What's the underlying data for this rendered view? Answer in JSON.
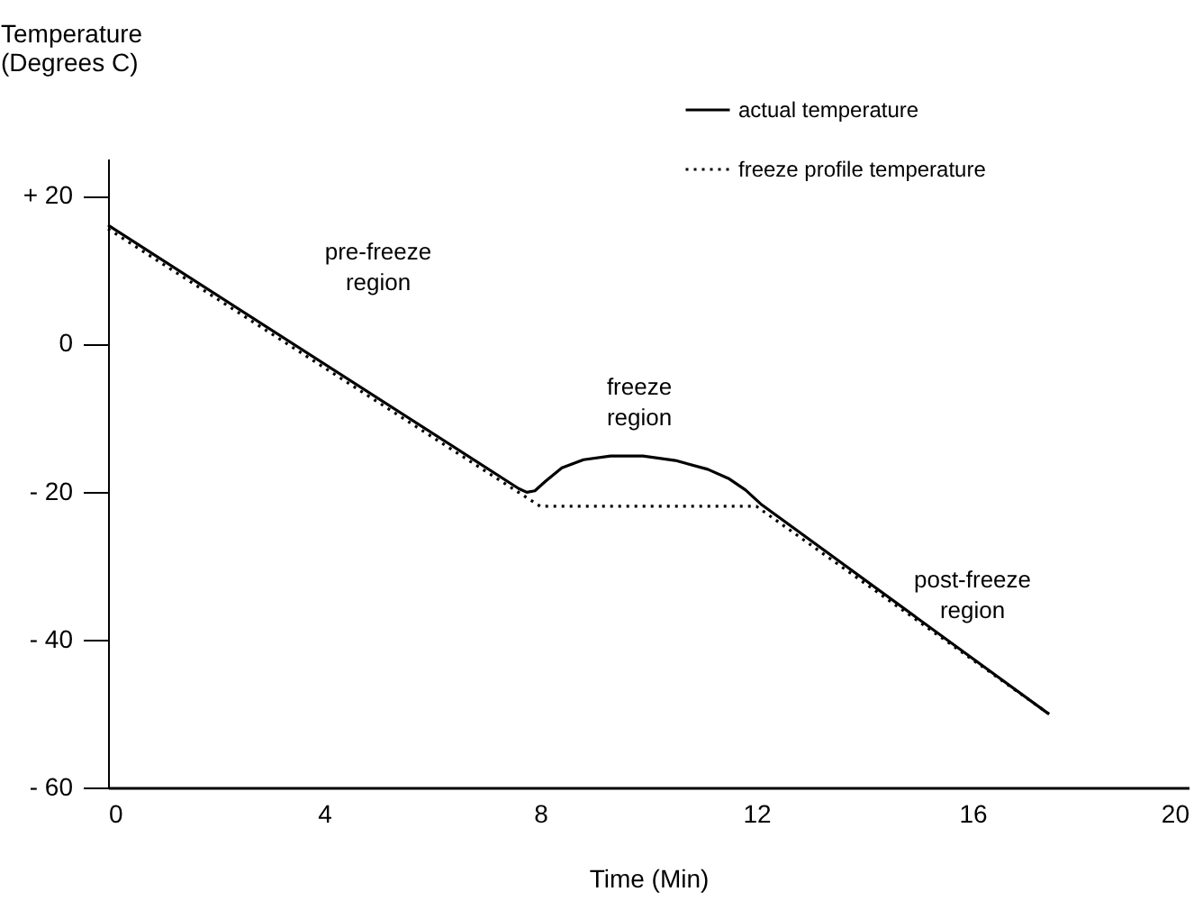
{
  "chart_data": {
    "type": "line",
    "xlabel": "Time (Min)",
    "ylabel": "Temperature (Degrees C)",
    "xlim": [
      0,
      20
    ],
    "xticks": [
      0,
      4,
      8,
      12,
      16,
      20
    ],
    "ylim": [
      -60,
      25
    ],
    "yticks": [
      {
        "value": 20,
        "label": "+ 20"
      },
      0,
      {
        "value": -20,
        "label": "- 20"
      },
      {
        "value": -40,
        "label": "- 40"
      },
      {
        "value": -60,
        "label": "- 60"
      }
    ],
    "grid": false,
    "legend": "top right",
    "marker": "none",
    "series": [
      {
        "name": "actual temperature",
        "color": "#000000",
        "line_style": "solid",
        "x": [
          0,
          7.6,
          7.75,
          7.9,
          8.1,
          8.4,
          8.8,
          9.3,
          9.9,
          10.5,
          11.1,
          11.5,
          11.8,
          12.1,
          17.4
        ],
        "values": [
          16,
          -19.6,
          -20.1,
          -19.9,
          -18.6,
          -16.8,
          -15.7,
          -15.2,
          -15.2,
          -15.8,
          -17,
          -18.3,
          -19.8,
          -21.8,
          -50
        ]
      },
      {
        "name": "freeze profile temperature",
        "color": "#000000",
        "line_style": "dotted",
        "x": [
          0,
          8,
          12,
          17.5
        ],
        "values": [
          15.5,
          -22,
          -22,
          -50.5
        ]
      }
    ],
    "annotations": [
      "pre-freeze region",
      "freeze region",
      "post-freeze region"
    ]
  }
}
